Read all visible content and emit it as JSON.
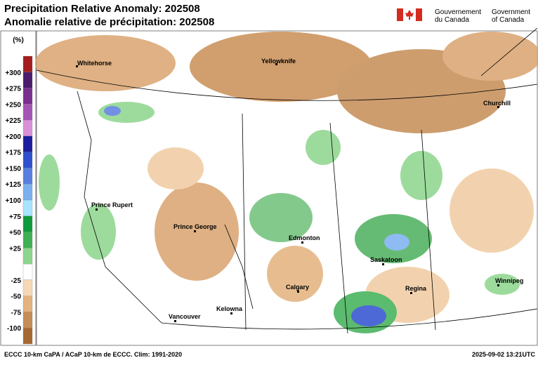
{
  "header": {
    "title_en": "Precipitation Relative Anomaly: 202508",
    "title_fr": "Anomalie relative de précipitation: 202508",
    "gov_fr": [
      "Gouvernement",
      "du Canada"
    ],
    "gov_en": [
      "Government",
      "of Canada"
    ]
  },
  "legend": {
    "unit": "(%)",
    "labels": [
      "+300",
      "+275",
      "+250",
      "+225",
      "+200",
      "+175",
      "+150",
      "+125",
      "+100",
      "+75",
      "+50",
      "+25",
      "-25",
      "-50",
      "-75",
      "-100"
    ],
    "colors": [
      "#a51d1d",
      "#4b1c6b",
      "#7a2f8f",
      "#a454b4",
      "#d98fd9",
      "#1c1ca0",
      "#2f4fcf",
      "#5a7ee0",
      "#7ab0f0",
      "#a6e4ff",
      "#0f9a3c",
      "#3fb055",
      "#8cd58c",
      "#ffffff",
      "#f6d8b4",
      "#e3b27d",
      "#c58c55",
      "#a5682f"
    ]
  },
  "map": {
    "cities": [
      "Whitehorse",
      "Yellowknife",
      "Churchill",
      "Prince Rupert",
      "Prince George",
      "Edmonton",
      "Saskatoon",
      "Regina",
      "Winnipeg",
      "Calgary",
      "Kelowna",
      "Vancouver"
    ]
  },
  "footer": {
    "source": "ECCC 10-km CaPA / ACaP 10-km de ECCC. Clim: 1991-2020",
    "timestamp": "2025-09-02 13:21UTC"
  }
}
